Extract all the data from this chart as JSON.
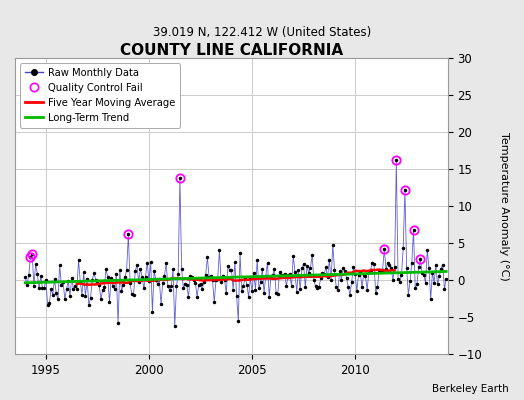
{
  "title": "COUNTY LINE CALIFORNIA",
  "subtitle": "39.019 N, 122.412 W (United States)",
  "ylabel": "Temperature Anomaly (°C)",
  "credit": "Berkeley Earth",
  "ylim": [
    -10,
    30
  ],
  "yticks": [
    -10,
    -5,
    0,
    5,
    10,
    15,
    20,
    25,
    30
  ],
  "xlim": [
    1993.5,
    2014.5
  ],
  "xticks": [
    1995,
    2000,
    2005,
    2010
  ],
  "fig_bg_color": "#e8e8e8",
  "plot_bg_color": "#ffffff",
  "raw_line_color": "#4444cc",
  "raw_dot_color": "#000000",
  "qc_fail_color": "#ff00ff",
  "moving_avg_color": "#ff0000",
  "trend_color": "#00bb00",
  "grid_color": "#cccccc",
  "legend_loc": "upper left",
  "spike_times": [
    1994.25,
    1994.33,
    1999.0,
    2001.5,
    2011.42,
    2012.0,
    2012.42,
    2012.83,
    2013.17
  ],
  "spike_vals": [
    3.2,
    3.5,
    6.2,
    13.8,
    4.2,
    16.2,
    12.2,
    6.8,
    2.8
  ],
  "neg_spike_times": [
    1998.5,
    2001.25,
    2004.33
  ],
  "neg_spike_vals": [
    -5.8,
    -6.2,
    -5.5
  ],
  "start_year": 1994.0,
  "n_months": 246,
  "noise_scale": 1.6,
  "seed": 42
}
